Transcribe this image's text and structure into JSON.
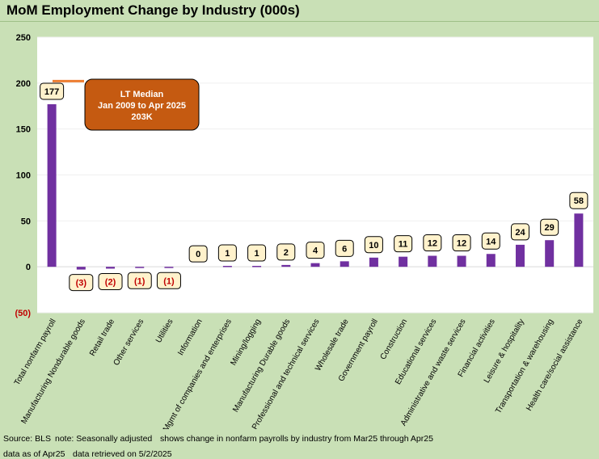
{
  "title": "MoM Employment Change by Industry (000s)",
  "annotation": {
    "line1": "LT Median",
    "line2": "Jan 2009 to Apr 2025",
    "line3": "203K",
    "median_value": 203
  },
  "footer": {
    "line1_source": "Source: BLS",
    "line1_note": "note: Seasonally adjusted",
    "line1_desc": "shows change in nonfarm payrolls by industry from Mar25 through Apr25",
    "line2_asof": "data as of Apr25",
    "line2_retrieved": "data retrieved on 5/2/2025"
  },
  "colors": {
    "bar": "#7030a0",
    "median_line": "#ed7d31",
    "annotation_fill": "#c55a11",
    "negative_label": "#c00000",
    "label_fill": "#fff2cc",
    "background": "#c9e0b6"
  },
  "chart_data": {
    "type": "bar",
    "title": "MoM Employment Change by Industry (000s)",
    "ylim": [
      -50,
      250
    ],
    "yticks": [
      -50,
      0,
      50,
      100,
      150,
      200,
      250
    ],
    "ytick_labels": [
      "(50)",
      "0",
      "50",
      "100",
      "150",
      "200",
      "250"
    ],
    "grid": true,
    "categories": [
      "Total nonfarm payroll",
      "Manufacturing Nondurable goods",
      "Retail trade",
      "Other services",
      "Utilities",
      "Information",
      "Mgmt of companies and enterprises",
      "Mining/logging",
      "Manufacturing Durable goods",
      "Professional and technical services",
      "Wholesale trade",
      "Government payroll",
      "Construction",
      "Educational services",
      "Administrative and waste services",
      "Financial activities",
      "Leisure & hospitality",
      "Transportation & warehousing",
      "Health care/social assistance"
    ],
    "values": [
      177,
      -3,
      -2,
      -1,
      -1,
      0,
      1,
      1,
      2,
      4,
      6,
      10,
      11,
      12,
      12,
      14,
      24,
      29,
      58
    ],
    "value_labels": [
      "177",
      "(3)",
      "(2)",
      "(1)",
      "(1)",
      "0",
      "1",
      "1",
      "2",
      "4",
      "6",
      "10",
      "11",
      "12",
      "12",
      "14",
      "24",
      "29",
      "58"
    ]
  }
}
